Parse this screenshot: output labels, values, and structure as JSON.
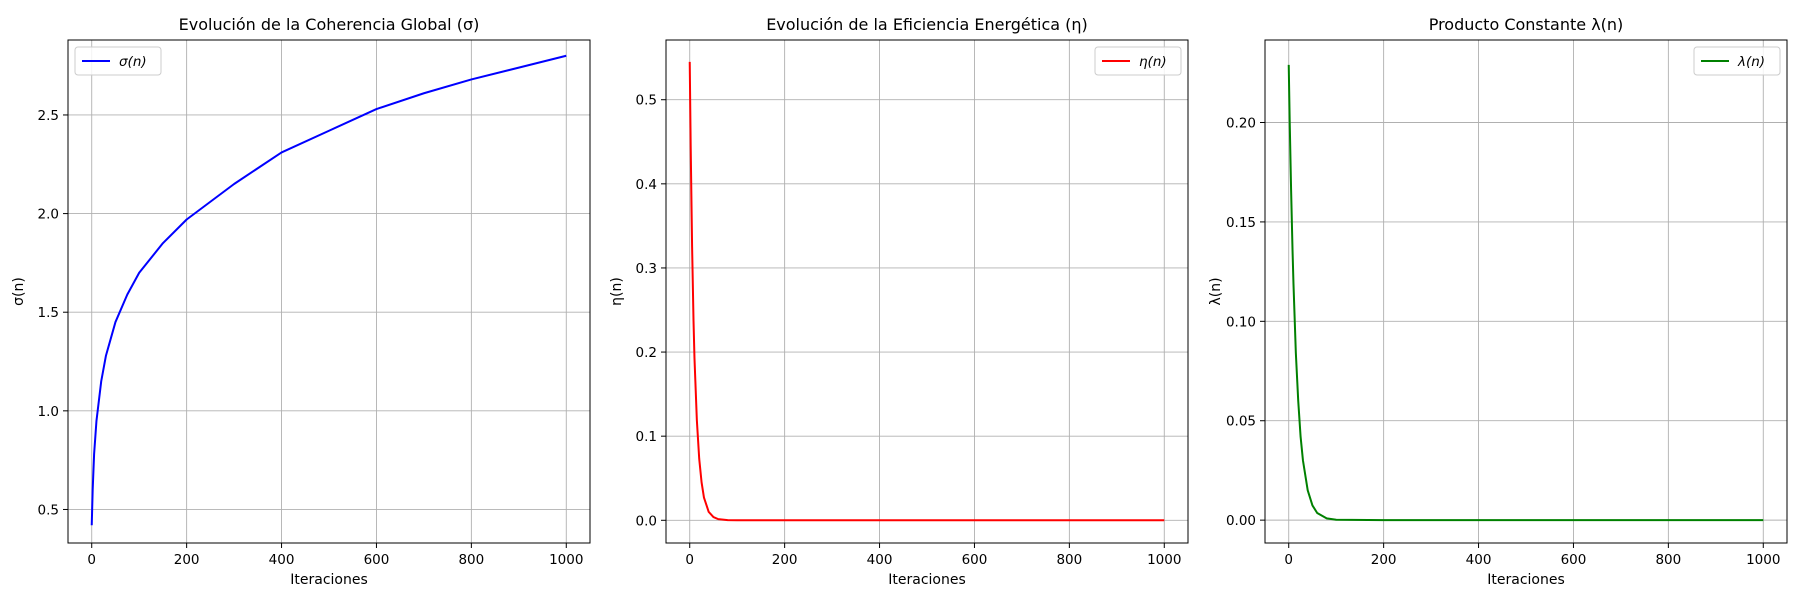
{
  "chart_data": [
    {
      "type": "line",
      "title": "Evolución de la Coherencia Global (σ)",
      "xlabel": "Iteraciones",
      "ylabel": "σ(n)",
      "xlim": [
        -50,
        1050
      ],
      "ylim": [
        0.33,
        2.88
      ],
      "xticks": [
        0,
        200,
        400,
        600,
        800,
        1000
      ],
      "yticks": [
        0.5,
        1.0,
        1.5,
        2.0,
        2.5
      ],
      "ytick_labels": [
        "0.5",
        "1.0",
        "1.5",
        "2.0",
        "2.5"
      ],
      "grid": true,
      "legend_position": "upper left",
      "series": [
        {
          "name": "σ(n)",
          "color": "#0000ff",
          "x": [
            0,
            2,
            5,
            10,
            20,
            30,
            50,
            75,
            100,
            150,
            200,
            250,
            300,
            400,
            500,
            600,
            700,
            800,
            900,
            1000
          ],
          "y": [
            0.42,
            0.6,
            0.78,
            0.95,
            1.15,
            1.28,
            1.45,
            1.59,
            1.7,
            1.85,
            1.97,
            2.06,
            2.15,
            2.31,
            2.42,
            2.53,
            2.61,
            2.68,
            2.74,
            2.8
          ]
        }
      ]
    },
    {
      "type": "line",
      "title": "Evolución de la Eficiencia Energética (η)",
      "xlabel": "Iteraciones",
      "ylabel": "η(n)",
      "xlim": [
        -50,
        1050
      ],
      "ylim": [
        -0.027,
        0.571
      ],
      "xticks": [
        0,
        200,
        400,
        600,
        800,
        1000
      ],
      "yticks": [
        0.0,
        0.1,
        0.2,
        0.3,
        0.4,
        0.5
      ],
      "ytick_labels": [
        "0.0",
        "0.1",
        "0.2",
        "0.3",
        "0.4",
        "0.5"
      ],
      "grid": true,
      "legend_position": "upper right",
      "series": [
        {
          "name": "η(n)",
          "color": "#ff0000",
          "x": [
            0,
            2,
            5,
            8,
            10,
            15,
            20,
            25,
            30,
            40,
            50,
            60,
            80,
            100,
            200,
            400,
            600,
            800,
            1000
          ],
          "y": [
            0.545,
            0.445,
            0.325,
            0.237,
            0.193,
            0.119,
            0.073,
            0.045,
            0.027,
            0.01,
            0.0038,
            0.0014,
            0.0002,
            0.0,
            0.0,
            0.0,
            0.0,
            0.0,
            0.0
          ]
        }
      ]
    },
    {
      "type": "line",
      "title": "Producto Constante λ(n)",
      "xlabel": "Iteraciones",
      "ylabel": "λ(n)",
      "xlim": [
        -50,
        1050
      ],
      "ylim": [
        -0.0115,
        0.2415
      ],
      "xticks": [
        0,
        200,
        400,
        600,
        800,
        1000
      ],
      "yticks": [
        0.0,
        0.05,
        0.1,
        0.15,
        0.2
      ],
      "ytick_labels": [
        "0.00",
        "0.05",
        "0.10",
        "0.15",
        "0.20"
      ],
      "grid": true,
      "legend_position": "upper right",
      "series": [
        {
          "name": "λ(n)",
          "color": "#008000",
          "x": [
            0,
            2,
            5,
            8,
            10,
            15,
            20,
            25,
            30,
            40,
            50,
            60,
            80,
            100,
            200,
            400,
            600,
            800,
            1000
          ],
          "y": [
            0.229,
            0.201,
            0.166,
            0.136,
            0.119,
            0.084,
            0.06,
            0.042,
            0.03,
            0.015,
            0.0074,
            0.0036,
            0.0009,
            0.0002,
            0.0,
            0.0,
            0.0,
            0.0,
            0.0
          ]
        }
      ]
    }
  ]
}
